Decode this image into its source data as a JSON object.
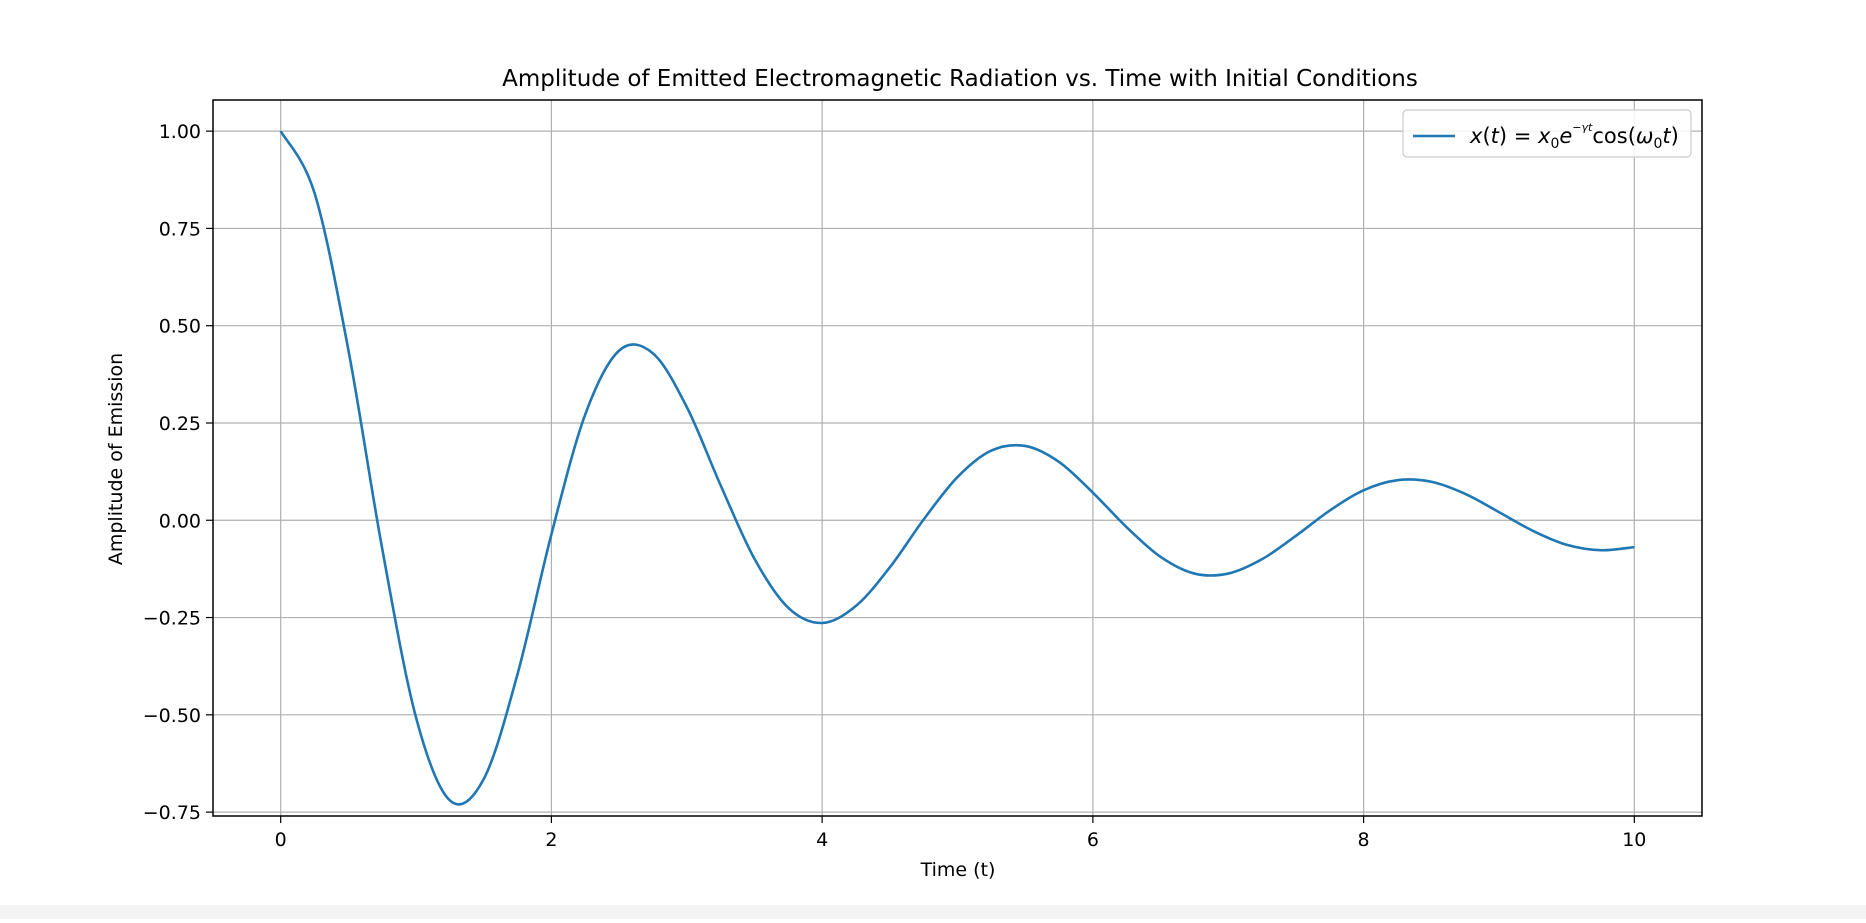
{
  "chart_data": {
    "type": "line",
    "title": "Amplitude of Emitted Electromagnetic Radiation vs. Time with Initial Conditions",
    "xlabel": "Time (t)",
    "ylabel": "Amplitude of Emission",
    "xlim": [
      -0.5,
      10.5
    ],
    "ylim": [
      -0.76,
      1.08
    ],
    "xticks": [
      0,
      2,
      4,
      6,
      8,
      10
    ],
    "xtick_labels": [
      "0",
      "2",
      "4",
      "6",
      "8",
      "10"
    ],
    "yticks": [
      1.0,
      0.75,
      0.5,
      0.25,
      0.0,
      -0.25,
      -0.5,
      -0.75
    ],
    "ytick_labels": [
      "1.00",
      "0.75",
      "0.50",
      "0.25",
      "0.00",
      "−0.25",
      "−0.50",
      "−0.75"
    ],
    "grid": true,
    "legend_position": "upper right",
    "series": [
      {
        "name": "x(t) = x₀e^(−γ/2 t) cos(ω₀t)",
        "color": "#1f77b4",
        "x": [
          0.0,
          0.25,
          0.5,
          0.75,
          1.0,
          1.25,
          1.5,
          1.75,
          2.0,
          2.25,
          2.5,
          2.75,
          3.0,
          3.25,
          3.5,
          3.75,
          4.0,
          4.25,
          4.5,
          4.75,
          5.0,
          5.25,
          5.5,
          5.75,
          6.0,
          6.25,
          6.5,
          6.75,
          7.0,
          7.25,
          7.5,
          7.75,
          8.0,
          8.25,
          8.5,
          8.75,
          9.0,
          9.25,
          9.5,
          9.75,
          10.0
        ],
        "y": [
          1.0,
          0.841,
          0.438,
          -0.073,
          -0.507,
          -0.72,
          -0.665,
          -0.395,
          -0.036,
          0.272,
          0.436,
          0.429,
          0.291,
          0.09,
          -0.099,
          -0.225,
          -0.264,
          -0.22,
          -0.121,
          0.002,
          0.111,
          0.179,
          0.191,
          0.15,
          0.071,
          -0.018,
          -0.094,
          -0.137,
          -0.137,
          -0.1,
          -0.04,
          0.025,
          0.077,
          0.103,
          0.099,
          0.068,
          0.021,
          -0.027,
          -0.063,
          -0.077,
          -0.069
        ]
      }
    ]
  }
}
